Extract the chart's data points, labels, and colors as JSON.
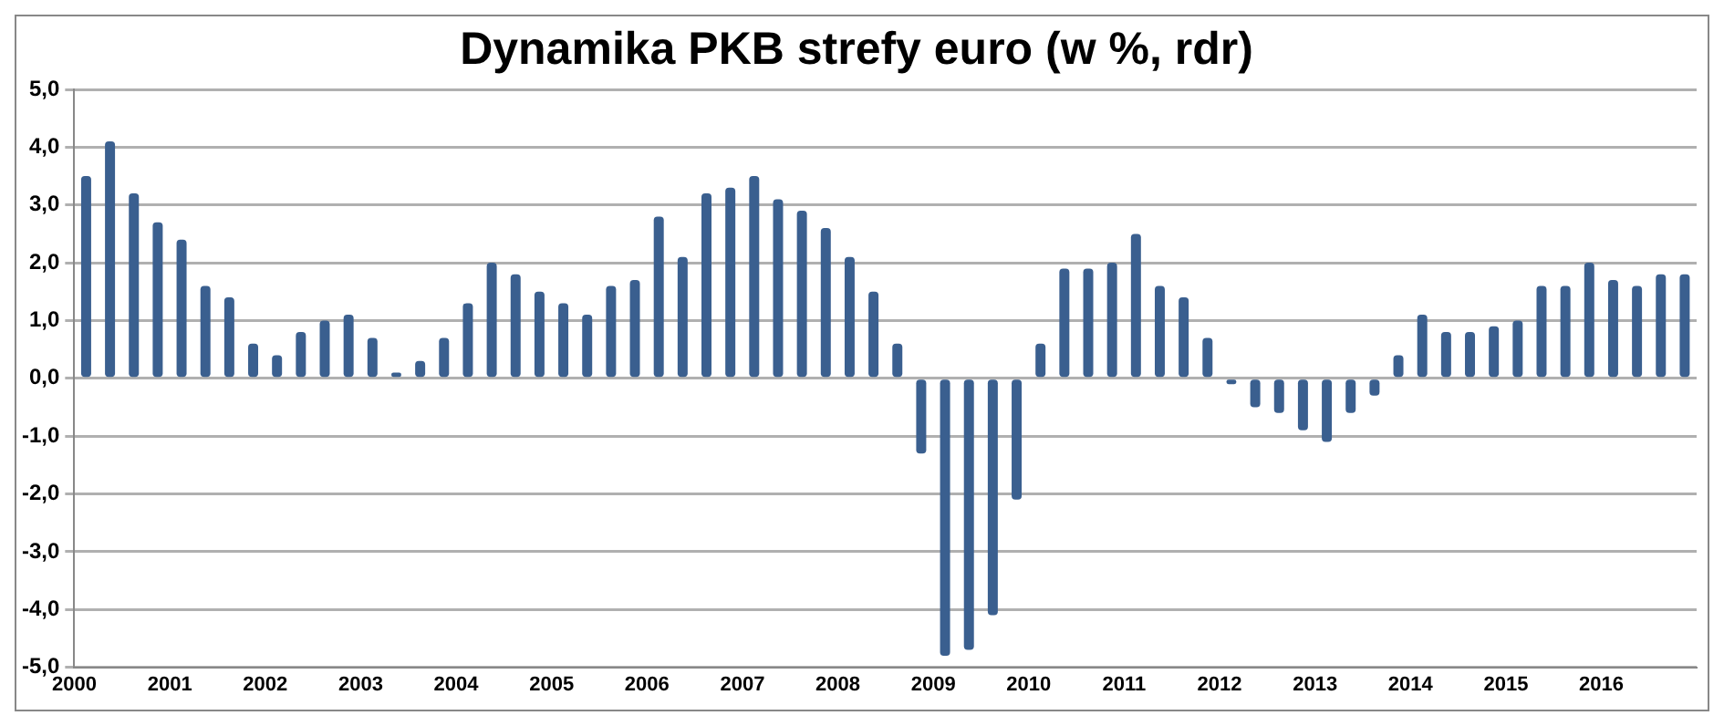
{
  "chart_data": {
    "type": "bar",
    "title": "Dynamika PKB strefy euro (w %, rdr)",
    "categories": [
      "2000",
      null,
      null,
      null,
      "2001",
      null,
      null,
      null,
      "2002",
      null,
      null,
      null,
      "2003",
      null,
      null,
      null,
      "2004",
      null,
      null,
      null,
      "2005",
      null,
      null,
      null,
      "2006",
      null,
      null,
      null,
      "2007",
      null,
      null,
      null,
      "2008",
      null,
      null,
      null,
      "2009",
      null,
      null,
      null,
      "2010",
      null,
      null,
      null,
      "2011",
      null,
      null,
      null,
      "2012",
      null,
      null,
      null,
      "2013",
      null,
      null,
      null,
      "2014",
      null,
      null,
      null,
      "2015",
      null,
      null,
      null,
      "2016",
      null,
      null,
      null
    ],
    "values": [
      3.5,
      4.1,
      3.2,
      2.7,
      2.4,
      1.6,
      1.4,
      0.6,
      0.4,
      0.8,
      1.0,
      1.1,
      0.7,
      0.1,
      0.3,
      0.7,
      1.3,
      2.0,
      1.8,
      1.5,
      1.3,
      1.1,
      1.6,
      1.7,
      2.8,
      2.1,
      3.2,
      3.3,
      3.5,
      3.1,
      2.9,
      2.6,
      2.1,
      1.5,
      0.6,
      -1.3,
      -4.8,
      -4.7,
      -4.1,
      -2.1,
      0.6,
      1.9,
      1.9,
      2.0,
      2.5,
      1.6,
      1.4,
      0.7,
      -0.1,
      -0.5,
      -0.6,
      -0.9,
      -1.1,
      -0.6,
      -0.3,
      0.4,
      1.1,
      0.8,
      0.8,
      0.9,
      1.0,
      1.6,
      1.6,
      2.0,
      1.7,
      1.6,
      1.8,
      1.8
    ],
    "color": "#3a5f8f",
    "ylim": [
      -5,
      5
    ],
    "yticks": [
      {
        "value": -5,
        "label": "-5,0"
      },
      {
        "value": -4,
        "label": "-4,0"
      },
      {
        "value": -3,
        "label": "-3,0"
      },
      {
        "value": -2,
        "label": "-2,0"
      },
      {
        "value": -1,
        "label": "-1,0"
      },
      {
        "value": 0,
        "label": "0,0"
      },
      {
        "value": 1,
        "label": "1,0"
      },
      {
        "value": 2,
        "label": "2,0"
      },
      {
        "value": 3,
        "label": "3,0"
      },
      {
        "value": 4,
        "label": "4,0"
      },
      {
        "value": 5,
        "label": "5,0"
      }
    ],
    "grid": "y",
    "legend": false
  }
}
